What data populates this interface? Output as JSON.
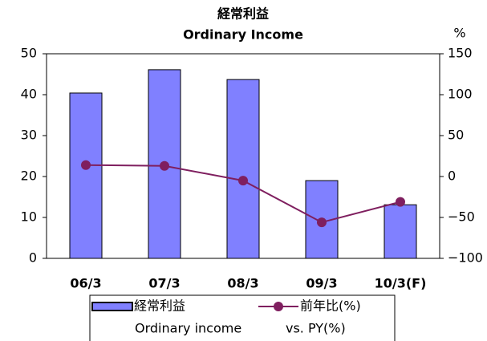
{
  "chart_data": {
    "type": "bar_line",
    "title": "経常利益",
    "subtitle": "Ordinary Income",
    "y2_label": "%",
    "categories": [
      "06/3",
      "07/3",
      "08/3",
      "09/3",
      "10/3(F)"
    ],
    "series": [
      {
        "name": "経常利益",
        "legend_sub": "Ordinary income",
        "type": "bar",
        "color": "#8080ff",
        "values": [
          40.4,
          46.1,
          43.7,
          19.0,
          13.1
        ]
      },
      {
        "name": "前年比(%)",
        "legend_sub": "vs. PY(%)",
        "type": "line",
        "axis": "y2",
        "color": "#7f1f5f",
        "values": [
          14,
          13,
          -5,
          -56,
          -31
        ]
      }
    ],
    "ylim": [
      0,
      50
    ],
    "yticks": [
      0,
      10,
      20,
      30,
      40,
      50
    ],
    "y2lim": [
      -100,
      150
    ],
    "y2ticks": [
      {
        "value": -100,
        "label": "−100"
      },
      {
        "value": -50,
        "label": "−50"
      },
      0,
      50,
      100,
      150
    ],
    "grid": false
  }
}
